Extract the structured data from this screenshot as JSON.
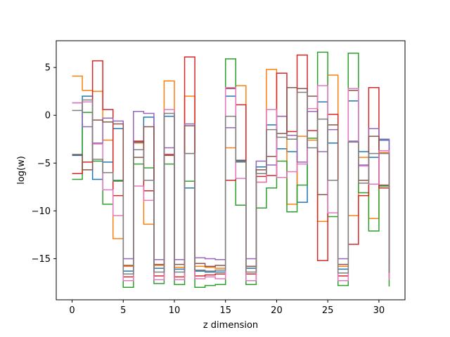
{
  "chart_data": {
    "type": "line",
    "style": "steps-post",
    "title": "",
    "xlabel": "z dimension",
    "ylabel": "log(w)",
    "xlim": [
      -1.55,
      32.55
    ],
    "ylim": [
      -19.3,
      7.8
    ],
    "xticks": [
      0,
      5,
      10,
      15,
      20,
      25,
      30
    ],
    "yticks": [
      5,
      0,
      -5,
      -10,
      -15
    ],
    "grid": false,
    "legend": false,
    "colors": [
      "#1f77b4",
      "#ff7f0e",
      "#2ca02c",
      "#d62728",
      "#9467bd",
      "#8c564b",
      "#e377c2",
      "#7f7f7f"
    ],
    "x": [
      0,
      1,
      2,
      3,
      4,
      5,
      6,
      7,
      8,
      9,
      10,
      11,
      12,
      13,
      14,
      15,
      16,
      17,
      18,
      19,
      20,
      21,
      22,
      23,
      24,
      25,
      26,
      27,
      28,
      29,
      30,
      31
    ],
    "series": [
      {
        "values": [
          -4.2,
          2.0,
          -6.7,
          -4.9,
          -1.4,
          -16.3,
          -2.8,
          -0.2,
          -16.0,
          -0.1,
          -16.1,
          -7.6,
          -16.3,
          -16.4,
          -16.4,
          2.0,
          -4.8,
          -16.0,
          -5.4,
          -1.0,
          -3.5,
          -3.8,
          -9.1,
          0.4,
          1.4,
          -2.9,
          -16.1,
          1.5,
          -3.8,
          -4.4,
          -2.6,
          -16.4
        ]
      },
      {
        "values": [
          4.1,
          2.6,
          2.5,
          -2.6,
          -12.9,
          -15.8,
          -2.9,
          -11.4,
          -15.7,
          3.6,
          -15.9,
          2.0,
          -15.8,
          -15.9,
          -16.0,
          -3.4,
          3.1,
          -15.8,
          -7.0,
          4.8,
          -0.1,
          -9.3,
          -2.2,
          -2.6,
          -11.1,
          4.2,
          -15.8,
          -10.5,
          -4.4,
          -10.8,
          -3.9,
          -15.8
        ]
      },
      {
        "values": [
          -6.7,
          0.3,
          -4.8,
          -9.3,
          -6.8,
          -18.0,
          -5.1,
          -5.5,
          -17.6,
          -5.1,
          -17.7,
          -6.9,
          -18.0,
          -17.8,
          -17.7,
          5.9,
          -9.4,
          -17.7,
          -9.7,
          -7.6,
          -4.8,
          -10.1,
          -7.3,
          -2.4,
          6.6,
          -10.6,
          -17.8,
          6.5,
          -8.1,
          -12.1,
          -7.4,
          -17.9
        ]
      },
      {
        "values": [
          -6.1,
          -4.9,
          5.7,
          0.6,
          -8.4,
          -16.9,
          -2.7,
          -7.9,
          -16.8,
          -4.1,
          -16.9,
          6.1,
          -16.8,
          -16.7,
          -16.6,
          -6.8,
          1.1,
          -16.6,
          -6.4,
          -6.3,
          4.4,
          -1.7,
          6.3,
          -1.6,
          -15.2,
          0.1,
          -16.8,
          -13.5,
          -8.4,
          2.9,
          -7.6,
          -17.1
        ]
      },
      {
        "values": [
          1.3,
          -1.2,
          -2.9,
          -0.3,
          -0.6,
          -15.0,
          0.4,
          0.2,
          -15.1,
          -3.4,
          -15.1,
          -0.9,
          -14.9,
          -15.0,
          -15.1,
          -1.3,
          -4.7,
          -15.0,
          -4.8,
          -5.2,
          -0.1,
          -2.1,
          -4.9,
          0.4,
          -3.8,
          -1.5,
          -15.0,
          -2.7,
          -5.2,
          -1.4,
          -2.5,
          -14.9
        ]
      },
      {
        "values": [
          -4.1,
          -5.7,
          -0.5,
          -0.7,
          -0.9,
          -15.7,
          -4.4,
          -1.2,
          -15.6,
          -4.2,
          -15.6,
          -1.1,
          -15.5,
          -15.8,
          -15.7,
          2.8,
          -4.7,
          -15.8,
          -5.7,
          -4.3,
          -1.9,
          2.9,
          2.8,
          2.0,
          -8.3,
          -1.0,
          -15.6,
          2.6,
          -6.8,
          -2.2,
          -7.3,
          -15.7
        ]
      },
      {
        "values": [
          1.3,
          1.4,
          -3.0,
          -7.8,
          -10.5,
          -17.3,
          -7.4,
          -8.9,
          -17.2,
          0.6,
          -17.2,
          -4.0,
          -17.1,
          -16.9,
          -17.1,
          2.9,
          -6.6,
          -17.3,
          -7.0,
          0.6,
          -6.5,
          -5.9,
          -5.1,
          0.7,
          3.1,
          -10.2,
          -17.3,
          2.8,
          -5.3,
          -7.2,
          -3.7,
          -17.2
        ]
      },
      {
        "values": [
          0.5,
          1.6,
          -4.6,
          -6.0,
          -6.9,
          -16.6,
          -3.6,
          -6.8,
          -16.4,
          0.2,
          -16.4,
          -4.0,
          -16.2,
          -16.3,
          -16.2,
          -0.1,
          -4.9,
          -16.4,
          -6.1,
          -1.5,
          -2.3,
          -2.5,
          2.4,
          -3.4,
          -0.4,
          -6.8,
          -16.5,
          -2.8,
          -7.1,
          -4.0,
          -4.0,
          -16.5
        ]
      }
    ]
  }
}
